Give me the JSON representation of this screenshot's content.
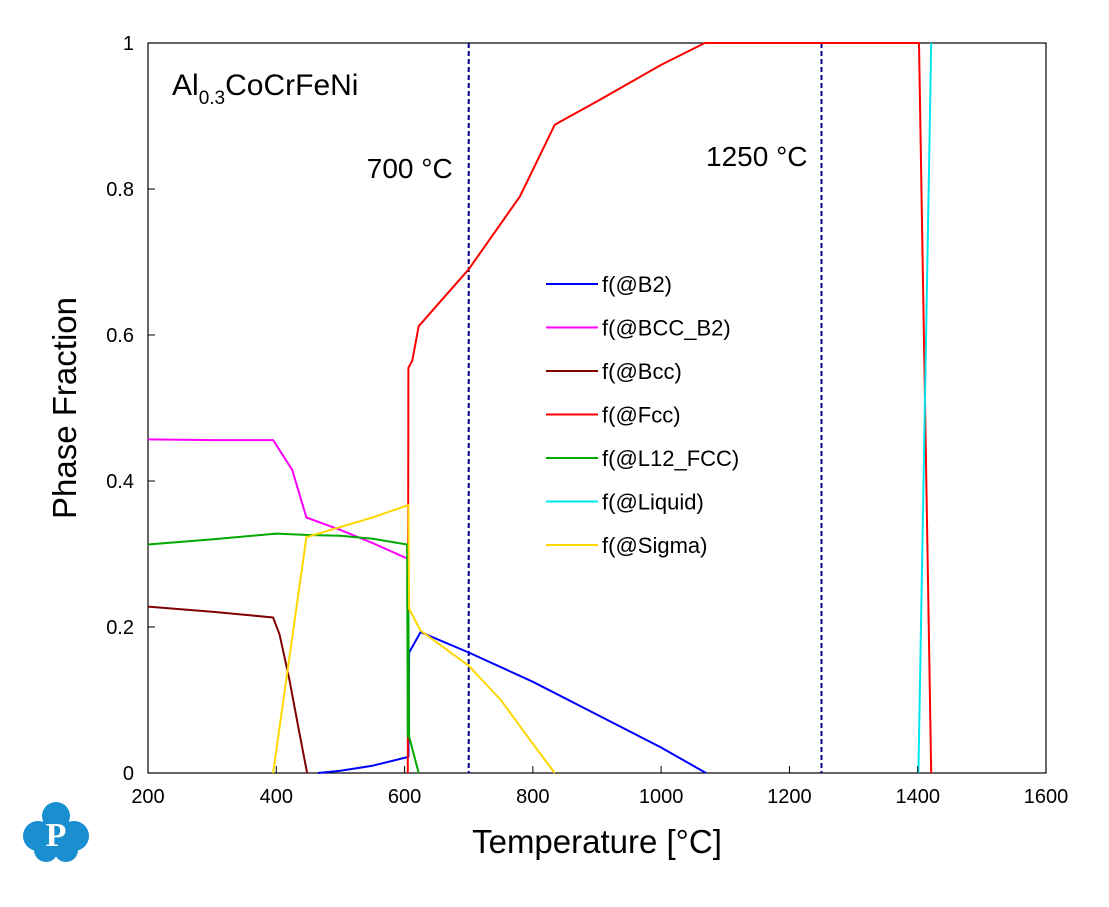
{
  "chart_data": {
    "type": "line",
    "title_main": "Al",
    "title_sub": "0.3",
    "title_rest": "CoCrFeNi",
    "xlabel": "Temperature [°C]",
    "ylabel": "Phase Fraction",
    "xlim": [
      200,
      1600
    ],
    "ylim": [
      0,
      1
    ],
    "xticks": [
      200,
      400,
      600,
      800,
      1000,
      1200,
      1400,
      1600
    ],
    "xtick_labels": [
      "200",
      "400",
      "600",
      "800",
      "1000",
      "1200",
      "1400",
      "1600"
    ],
    "yticks": [
      0,
      0.2,
      0.4,
      0.6,
      0.8,
      1
    ],
    "ytick_labels": [
      "0",
      "0.2",
      "0.4",
      "0.6",
      "0.8",
      "1"
    ],
    "grid": false,
    "legend_position": "center",
    "vlines": [
      {
        "x": 700,
        "label": "700 °C",
        "color": "#00008b"
      },
      {
        "x": 1250,
        "label": "1250 °C",
        "color": "#00008b"
      }
    ],
    "series": [
      {
        "name": "f(@B2)",
        "color": "#0000ff",
        "points": [
          [
            465,
            0
          ],
          [
            500,
            0.003
          ],
          [
            550,
            0.01
          ],
          [
            606,
            0.022
          ],
          [
            607,
            0.165
          ],
          [
            625,
            0.193
          ],
          [
            700,
            0.165
          ],
          [
            800,
            0.125
          ],
          [
            900,
            0.08
          ],
          [
            1000,
            0.035
          ],
          [
            1070,
            0
          ]
        ]
      },
      {
        "name": "f(@BCC_B2)",
        "color": "#ff00ff",
        "points": [
          [
            200,
            0.457
          ],
          [
            300,
            0.456
          ],
          [
            395,
            0.456
          ],
          [
            425,
            0.415
          ],
          [
            447,
            0.35
          ],
          [
            500,
            0.333
          ],
          [
            550,
            0.315
          ],
          [
            604,
            0.294
          ]
        ]
      },
      {
        "name": "f(@Bcc)",
        "color": "#800000",
        "points": [
          [
            200,
            0.228
          ],
          [
            300,
            0.221
          ],
          [
            395,
            0.213
          ],
          [
            405,
            0.19
          ],
          [
            420,
            0.13
          ],
          [
            435,
            0.06
          ],
          [
            448,
            0
          ]
        ]
      },
      {
        "name": "f(@Fcc)",
        "color": "#ff0000",
        "points": [
          [
            605,
            0
          ],
          [
            606,
            0.555
          ],
          [
            612,
            0.565
          ],
          [
            622,
            0.612
          ],
          [
            700,
            0.69
          ],
          [
            780,
            0.79
          ],
          [
            834,
            0.888
          ],
          [
            900,
            0.92
          ],
          [
            1000,
            0.97
          ],
          [
            1068,
            1
          ],
          [
            1200,
            1
          ],
          [
            1400,
            1
          ],
          [
            1402,
            1
          ],
          [
            1421,
            0
          ]
        ]
      },
      {
        "name": "f(@L12_FCC)",
        "color": "#00aa00",
        "points": [
          [
            200,
            0.313
          ],
          [
            300,
            0.32
          ],
          [
            400,
            0.328
          ],
          [
            450,
            0.326
          ],
          [
            500,
            0.325
          ],
          [
            550,
            0.321
          ],
          [
            604,
            0.313
          ],
          [
            605,
            0.05
          ],
          [
            606,
            0.22
          ],
          [
            607,
            0.05
          ],
          [
            622,
            0
          ]
        ]
      },
      {
        "name": "f(@Liquid)",
        "color": "#00e5ee",
        "points": [
          [
            1401,
            0
          ],
          [
            1418,
            0.85
          ],
          [
            1421,
            1
          ]
        ]
      },
      {
        "name": "f(@Sigma)",
        "color": "#ffd700",
        "points": [
          [
            395,
            0
          ],
          [
            447,
            0.323
          ],
          [
            500,
            0.337
          ],
          [
            550,
            0.35
          ],
          [
            606,
            0.367
          ],
          [
            607,
            0.225
          ],
          [
            625,
            0.195
          ],
          [
            700,
            0.147
          ],
          [
            750,
            0.1
          ],
          [
            800,
            0.04
          ],
          [
            834,
            0
          ]
        ]
      }
    ]
  }
}
